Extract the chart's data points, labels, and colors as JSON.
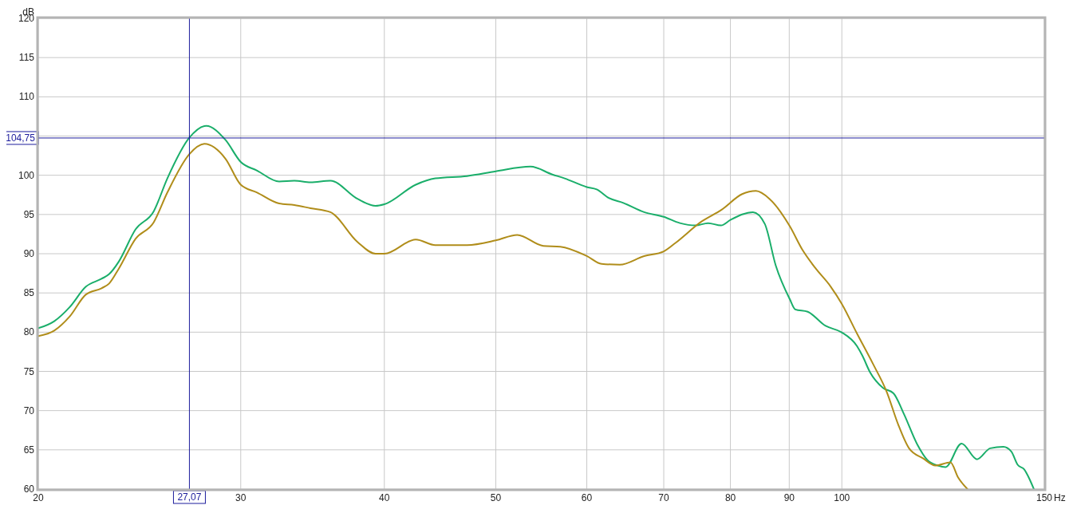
{
  "chart_data": {
    "type": "line",
    "xlabel": "Hz",
    "ylabel": "dB",
    "log": "x",
    "grid": true,
    "xlim": [
      20,
      150
    ],
    "xticks": [
      20,
      30,
      40,
      50,
      60,
      70,
      80,
      90,
      100,
      150
    ],
    "ylim": [
      60,
      120
    ],
    "yticks": [
      60,
      65,
      70,
      75,
      80,
      85,
      90,
      95,
      100,
      {
        "value": 105,
        "label": null
      },
      110,
      115,
      120
    ],
    "ref_lines": [
      {
        "axis": "x",
        "value": 27.07,
        "label": "27,07",
        "color": "#1c1c9c"
      },
      {
        "axis": "y",
        "value": 104.75,
        "label": "104,75",
        "color": "#1c1c9c"
      }
    ],
    "series": [
      {
        "color": "#1aae6a",
        "x": [
          20,
          20.65,
          21.3,
          22.0,
          22.7,
          23.05,
          23.5,
          24.3,
          25.2,
          25.9,
          27.07,
          28.0,
          29.1,
          30,
          31.0,
          32.4,
          33.4,
          34.5,
          35.9,
          37.9,
          39.3,
          40,
          42.6,
          44.3,
          47.2,
          50,
          53.6,
          56,
          57.4,
          60,
          61.2,
          62.7,
          64.5,
          67.3,
          70,
          72.3,
          74.6,
          76.5,
          78.5,
          80,
          83.7,
          85.7,
          87.6,
          90.1,
          91.1,
          93.4,
          96.8,
          99.9,
          103.1,
          104.2,
          105.8,
          108.6,
          110.9,
          113.3,
          116.3,
          118.7,
          121.2,
          123.1,
          127.1,
          131.1,
          134.6,
          138.2,
          140.4,
          142.2,
          144.1,
          145.6,
          146.9
        ],
        "values": [
          80.5,
          81.4,
          83.2,
          85.8,
          86.8,
          87.4,
          89.0,
          93.1,
          95.4,
          99.6,
          104.8,
          106.3,
          104.5,
          101.7,
          100.6,
          99.2,
          99.3,
          99.1,
          99.3,
          97.0,
          96.1,
          96.3,
          98.8,
          99.6,
          99.9,
          100.5,
          101.1,
          100.1,
          99.6,
          98.5,
          98.2,
          97.1,
          96.5,
          95.3,
          94.7,
          93.9,
          93.6,
          93.9,
          93.6,
          94.3,
          95.3,
          93.8,
          88.5,
          84.2,
          82.9,
          82.6,
          80.8,
          80.0,
          78.2,
          77.0,
          74.9,
          72.9,
          72.2,
          69.5,
          65.7,
          63.7,
          63.0,
          62.8,
          65.8,
          63.8,
          65.2,
          65.4,
          64.8,
          63.1,
          62.5,
          61.3,
          60.0
        ]
      },
      {
        "color": "#b08d1a",
        "x": [
          20,
          20.65,
          21.3,
          22.0,
          22.7,
          23.05,
          23.5,
          24.3,
          25.2,
          25.9,
          27.07,
          27.9,
          29.1,
          30,
          31.0,
          32.4,
          33.4,
          34.5,
          35.9,
          37.9,
          39.3,
          40,
          42.6,
          44.3,
          47.2,
          50,
          52.2,
          55,
          56.9,
          60,
          61.8,
          64.1,
          67.3,
          70,
          71.7,
          75.5,
          78.6,
          81.9,
          84.2,
          86.5,
          90.1,
          92.4,
          94.8,
          97.8,
          100,
          103.1,
          106.4,
          109.4,
          111.9,
          114.4,
          117.7,
          120.6,
          124.3,
          126.2,
          128.6
        ],
        "values": [
          79.5,
          80.2,
          82.0,
          84.8,
          85.6,
          86.2,
          88.1,
          91.9,
          94.0,
          97.8,
          102.7,
          104.0,
          102.1,
          98.8,
          97.8,
          96.4,
          96.2,
          95.8,
          95.3,
          91.5,
          90.0,
          90.0,
          91.8,
          91.1,
          91.1,
          91.7,
          92.4,
          91.0,
          90.9,
          89.7,
          88.7,
          88.6,
          89.7,
          90.3,
          91.4,
          94.1,
          95.6,
          97.6,
          98.0,
          97.0,
          93.5,
          90.5,
          88.2,
          85.8,
          83.6,
          79.8,
          76.0,
          72.4,
          68.3,
          65.2,
          63.9,
          63.0,
          63.4,
          61.5,
          60.0
        ]
      }
    ]
  }
}
